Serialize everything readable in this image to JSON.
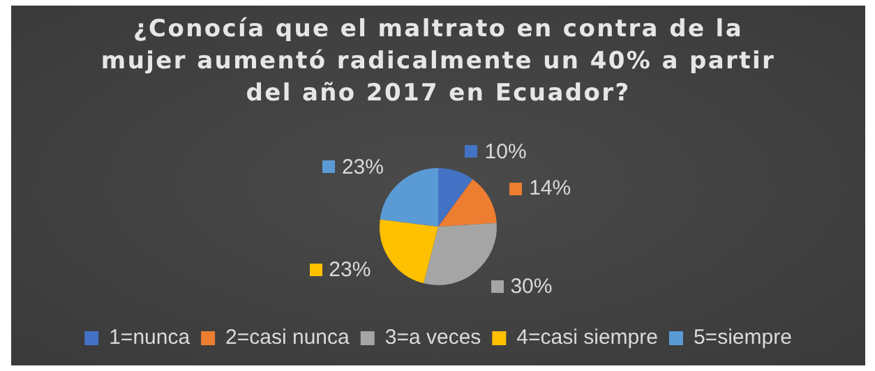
{
  "chart_data": {
    "type": "pie",
    "title": "¿Conocía que el maltrato en contra de la mujer aumentó radicalmente un 40% a partir del año 2017 en Ecuador?",
    "categories": [
      "1=nunca",
      "2=casi nunca",
      "3=a veces",
      "4=casi siempre",
      "5=siempre"
    ],
    "values": [
      10,
      14,
      30,
      23,
      23
    ],
    "value_labels": [
      "10%",
      "14%",
      "30%",
      "23%",
      "23%"
    ],
    "colors": [
      "#4472c4",
      "#ed7d31",
      "#a5a5a5",
      "#ffc000",
      "#5b9bd5"
    ],
    "legend": "bottom"
  }
}
